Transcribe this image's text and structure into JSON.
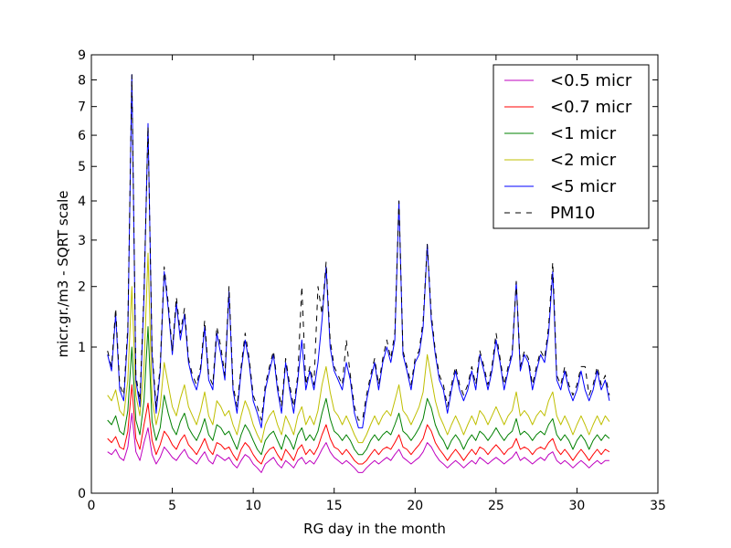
{
  "chart_data": {
    "type": "line",
    "title": "",
    "xlabel": "RG day in the month",
    "ylabel": "micr.gr./m3 - SQRT scale",
    "xlim": [
      0,
      35
    ],
    "ylim": [
      0,
      9
    ],
    "y_scale": "sqrt",
    "grid": false,
    "legend_position": "top-right",
    "x_ticks": [
      0,
      5,
      10,
      15,
      20,
      25,
      30,
      35
    ],
    "y_ticks": [
      0,
      1,
      2,
      3,
      4,
      5,
      6,
      7,
      8,
      9
    ],
    "x": [
      1.0,
      1.25,
      1.5,
      1.75,
      2.0,
      2.25,
      2.5,
      2.75,
      3.0,
      3.25,
      3.5,
      3.75,
      4.0,
      4.25,
      4.5,
      4.75,
      5.0,
      5.25,
      5.5,
      5.75,
      6.0,
      6.25,
      6.5,
      6.75,
      7.0,
      7.25,
      7.5,
      7.75,
      8.0,
      8.25,
      8.5,
      8.75,
      9.0,
      9.25,
      9.5,
      9.75,
      10.0,
      10.25,
      10.5,
      10.75,
      11.0,
      11.25,
      11.5,
      11.75,
      12.0,
      12.25,
      12.5,
      12.75,
      13.0,
      13.25,
      13.5,
      13.75,
      14.0,
      14.25,
      14.5,
      14.75,
      15.0,
      15.25,
      15.5,
      15.75,
      16.0,
      16.25,
      16.5,
      16.75,
      17.0,
      17.25,
      17.5,
      17.75,
      18.0,
      18.25,
      18.5,
      18.75,
      19.0,
      19.25,
      19.5,
      19.75,
      20.0,
      20.25,
      20.5,
      20.75,
      21.0,
      21.25,
      21.5,
      21.75,
      22.0,
      22.25,
      22.5,
      22.75,
      23.0,
      23.25,
      23.5,
      23.75,
      24.0,
      24.25,
      24.5,
      24.75,
      25.0,
      25.25,
      25.5,
      25.75,
      26.0,
      26.25,
      26.5,
      26.75,
      27.0,
      27.25,
      27.5,
      27.75,
      28.0,
      28.25,
      28.5,
      28.75,
      29.0,
      29.25,
      29.5,
      29.75,
      30.0,
      30.25,
      30.5,
      30.75,
      31.0,
      31.25,
      31.5,
      31.75,
      32.0
    ],
    "series": [
      {
        "name": "<0.5 micr",
        "color": "#bf00bf",
        "dash": "solid",
        "values": [
          0.08,
          0.07,
          0.09,
          0.06,
          0.05,
          0.1,
          0.3,
          0.08,
          0.05,
          0.12,
          0.2,
          0.07,
          0.04,
          0.06,
          0.1,
          0.08,
          0.06,
          0.05,
          0.07,
          0.09,
          0.06,
          0.05,
          0.04,
          0.06,
          0.08,
          0.05,
          0.04,
          0.07,
          0.06,
          0.05,
          0.06,
          0.04,
          0.03,
          0.05,
          0.07,
          0.06,
          0.04,
          0.03,
          0.02,
          0.04,
          0.05,
          0.06,
          0.04,
          0.03,
          0.05,
          0.04,
          0.03,
          0.05,
          0.06,
          0.04,
          0.05,
          0.04,
          0.06,
          0.09,
          0.12,
          0.08,
          0.06,
          0.05,
          0.04,
          0.05,
          0.04,
          0.03,
          0.02,
          0.02,
          0.03,
          0.04,
          0.05,
          0.04,
          0.05,
          0.06,
          0.05,
          0.07,
          0.09,
          0.06,
          0.05,
          0.04,
          0.05,
          0.06,
          0.08,
          0.12,
          0.1,
          0.07,
          0.05,
          0.04,
          0.03,
          0.04,
          0.05,
          0.04,
          0.03,
          0.04,
          0.05,
          0.04,
          0.06,
          0.05,
          0.04,
          0.05,
          0.06,
          0.05,
          0.04,
          0.05,
          0.06,
          0.08,
          0.05,
          0.06,
          0.05,
          0.04,
          0.05,
          0.06,
          0.05,
          0.07,
          0.08,
          0.05,
          0.04,
          0.05,
          0.04,
          0.03,
          0.04,
          0.05,
          0.04,
          0.03,
          0.04,
          0.05,
          0.04,
          0.05,
          0.05
        ]
      },
      {
        "name": "<0.7 micr",
        "color": "#ff0000",
        "dash": "solid",
        "values": [
          0.14,
          0.12,
          0.15,
          0.1,
          0.09,
          0.18,
          0.55,
          0.14,
          0.09,
          0.22,
          0.38,
          0.13,
          0.07,
          0.11,
          0.18,
          0.15,
          0.11,
          0.09,
          0.13,
          0.16,
          0.11,
          0.09,
          0.07,
          0.1,
          0.14,
          0.09,
          0.07,
          0.12,
          0.11,
          0.09,
          0.1,
          0.07,
          0.05,
          0.09,
          0.12,
          0.1,
          0.07,
          0.05,
          0.04,
          0.07,
          0.09,
          0.1,
          0.07,
          0.05,
          0.09,
          0.07,
          0.05,
          0.09,
          0.11,
          0.07,
          0.09,
          0.07,
          0.1,
          0.16,
          0.22,
          0.14,
          0.1,
          0.09,
          0.07,
          0.09,
          0.07,
          0.05,
          0.04,
          0.04,
          0.05,
          0.07,
          0.09,
          0.07,
          0.09,
          0.1,
          0.09,
          0.12,
          0.16,
          0.1,
          0.09,
          0.07,
          0.09,
          0.11,
          0.14,
          0.22,
          0.18,
          0.12,
          0.09,
          0.07,
          0.05,
          0.07,
          0.09,
          0.07,
          0.05,
          0.07,
          0.09,
          0.07,
          0.1,
          0.09,
          0.07,
          0.09,
          0.11,
          0.09,
          0.07,
          0.09,
          0.1,
          0.14,
          0.09,
          0.1,
          0.09,
          0.07,
          0.09,
          0.1,
          0.09,
          0.12,
          0.14,
          0.09,
          0.07,
          0.09,
          0.07,
          0.05,
          0.07,
          0.09,
          0.07,
          0.05,
          0.07,
          0.09,
          0.07,
          0.09,
          0.08
        ]
      },
      {
        "name": "<1 micr",
        "color": "#008000",
        "dash": "solid",
        "values": [
          0.25,
          0.22,
          0.28,
          0.18,
          0.16,
          0.32,
          1.0,
          0.25,
          0.16,
          0.4,
          1.3,
          0.24,
          0.13,
          0.2,
          0.45,
          0.3,
          0.2,
          0.16,
          0.24,
          0.3,
          0.2,
          0.16,
          0.13,
          0.18,
          0.26,
          0.16,
          0.13,
          0.22,
          0.2,
          0.16,
          0.18,
          0.13,
          0.09,
          0.16,
          0.22,
          0.18,
          0.13,
          0.09,
          0.07,
          0.13,
          0.16,
          0.18,
          0.13,
          0.09,
          0.16,
          0.13,
          0.09,
          0.16,
          0.2,
          0.13,
          0.16,
          0.13,
          0.18,
          0.3,
          0.42,
          0.26,
          0.18,
          0.16,
          0.13,
          0.16,
          0.13,
          0.09,
          0.07,
          0.07,
          0.09,
          0.13,
          0.16,
          0.13,
          0.16,
          0.18,
          0.16,
          0.22,
          0.3,
          0.18,
          0.16,
          0.13,
          0.16,
          0.2,
          0.26,
          0.42,
          0.34,
          0.22,
          0.16,
          0.13,
          0.09,
          0.13,
          0.16,
          0.13,
          0.09,
          0.13,
          0.16,
          0.13,
          0.18,
          0.16,
          0.13,
          0.16,
          0.2,
          0.16,
          0.13,
          0.16,
          0.18,
          0.26,
          0.16,
          0.18,
          0.16,
          0.13,
          0.16,
          0.18,
          0.16,
          0.22,
          0.26,
          0.16,
          0.13,
          0.16,
          0.13,
          0.09,
          0.13,
          0.16,
          0.13,
          0.09,
          0.13,
          0.16,
          0.13,
          0.16,
          0.14
        ]
      },
      {
        "name": "<2 micr",
        "color": "#bfbf00",
        "dash": "solid",
        "values": [
          0.45,
          0.4,
          0.5,
          0.32,
          0.28,
          0.6,
          2.0,
          0.45,
          0.28,
          0.75,
          2.7,
          0.42,
          0.22,
          0.35,
          0.8,
          0.55,
          0.35,
          0.28,
          0.42,
          0.55,
          0.35,
          0.28,
          0.22,
          0.32,
          0.48,
          0.28,
          0.22,
          0.4,
          0.35,
          0.28,
          0.32,
          0.22,
          0.16,
          0.28,
          0.4,
          0.32,
          0.22,
          0.16,
          0.12,
          0.22,
          0.28,
          0.32,
          0.22,
          0.16,
          0.28,
          0.22,
          0.16,
          0.28,
          0.35,
          0.22,
          0.28,
          0.22,
          0.32,
          0.55,
          0.75,
          0.48,
          0.32,
          0.28,
          0.22,
          0.28,
          0.22,
          0.16,
          0.12,
          0.12,
          0.16,
          0.22,
          0.28,
          0.22,
          0.28,
          0.32,
          0.28,
          0.4,
          0.55,
          0.32,
          0.28,
          0.22,
          0.28,
          0.35,
          0.48,
          0.9,
          0.62,
          0.4,
          0.28,
          0.22,
          0.16,
          0.22,
          0.28,
          0.22,
          0.16,
          0.22,
          0.28,
          0.22,
          0.32,
          0.28,
          0.22,
          0.28,
          0.35,
          0.28,
          0.22,
          0.28,
          0.32,
          0.48,
          0.28,
          0.32,
          0.28,
          0.22,
          0.28,
          0.32,
          0.28,
          0.4,
          0.48,
          0.28,
          0.22,
          0.28,
          0.22,
          0.16,
          0.22,
          0.28,
          0.22,
          0.16,
          0.22,
          0.28,
          0.22,
          0.28,
          0.24
        ]
      },
      {
        "name": "<5 micr",
        "color": "#0000ff",
        "dash": "solid",
        "values": [
          0.9,
          0.7,
          1.5,
          0.5,
          0.4,
          1.2,
          8.2,
          0.6,
          0.35,
          1.8,
          6.4,
          0.9,
          0.3,
          0.7,
          2.3,
          1.6,
          0.9,
          1.7,
          1.1,
          1.5,
          0.8,
          0.6,
          0.5,
          0.7,
          1.3,
          0.6,
          0.5,
          1.2,
          0.9,
          0.6,
          1.9,
          0.5,
          0.3,
          0.7,
          1.1,
          0.8,
          0.4,
          0.3,
          0.2,
          0.5,
          0.7,
          0.9,
          0.5,
          0.3,
          0.8,
          0.5,
          0.3,
          0.6,
          1.1,
          0.5,
          0.7,
          0.5,
          0.8,
          1.4,
          2.4,
          1.0,
          0.7,
          0.6,
          0.5,
          0.8,
          0.6,
          0.3,
          0.2,
          0.2,
          0.4,
          0.6,
          0.8,
          0.5,
          0.8,
          1.0,
          0.8,
          1.1,
          4.0,
          0.9,
          0.7,
          0.5,
          0.8,
          0.9,
          1.3,
          2.9,
          1.4,
          0.9,
          0.6,
          0.5,
          0.3,
          0.5,
          0.7,
          0.5,
          0.4,
          0.5,
          0.7,
          0.5,
          0.9,
          0.7,
          0.5,
          0.7,
          1.1,
          0.8,
          0.5,
          0.7,
          0.9,
          2.1,
          0.7,
          0.9,
          0.8,
          0.5,
          0.7,
          0.9,
          0.8,
          1.2,
          2.3,
          0.6,
          0.5,
          0.7,
          0.5,
          0.4,
          0.5,
          0.7,
          0.5,
          0.4,
          0.5,
          0.7,
          0.5,
          0.6,
          0.4
        ]
      },
      {
        "name": "PM10",
        "color": "#000000",
        "dash": "dashed",
        "values": [
          0.95,
          0.75,
          1.6,
          0.55,
          0.45,
          1.3,
          8.2,
          0.65,
          0.4,
          1.9,
          6.3,
          0.95,
          0.35,
          0.75,
          2.4,
          1.7,
          0.95,
          1.8,
          1.2,
          1.6,
          0.85,
          0.65,
          0.55,
          0.75,
          1.4,
          0.65,
          0.55,
          1.3,
          1.0,
          0.65,
          2.0,
          0.55,
          0.35,
          0.75,
          1.2,
          0.85,
          0.45,
          0.35,
          0.25,
          0.55,
          0.75,
          0.95,
          0.55,
          0.35,
          0.85,
          0.55,
          0.35,
          0.65,
          2.0,
          0.55,
          0.75,
          0.55,
          2.0,
          1.5,
          2.5,
          1.1,
          0.75,
          0.65,
          0.55,
          1.1,
          0.65,
          0.35,
          0.25,
          0.25,
          0.45,
          0.65,
          0.85,
          0.55,
          0.85,
          1.1,
          0.85,
          1.2,
          4.0,
          0.95,
          0.75,
          0.55,
          0.85,
          0.95,
          1.4,
          2.9,
          1.5,
          0.95,
          0.65,
          0.55,
          0.35,
          0.55,
          0.75,
          0.55,
          0.45,
          0.55,
          0.75,
          0.55,
          0.95,
          0.75,
          0.55,
          0.75,
          1.2,
          0.85,
          0.55,
          0.75,
          0.95,
          2.1,
          0.75,
          0.95,
          0.85,
          0.55,
          0.75,
          0.95,
          0.85,
          1.3,
          2.5,
          0.65,
          0.55,
          0.75,
          0.55,
          0.45,
          0.55,
          0.75,
          0.75,
          0.45,
          0.55,
          0.75,
          0.55,
          0.65,
          0.45
        ]
      }
    ]
  }
}
